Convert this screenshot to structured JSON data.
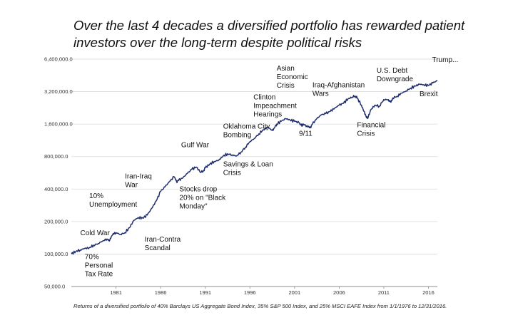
{
  "title": "Over the last 4 decades a diversified portfolio has rewarded patient investors over the long-term despite political risks",
  "footnote": "Returns of a diversified portfolio of 40% Barclays US Aggregate Bond Index, 35% S&P 500 Index, and 25% MSCI EAFE Index from 1/1/1976 to 12/31/2016.",
  "colors": {
    "line": "#1f2d6e",
    "grid": "#d9d9d9",
    "axis": "#8c8c8c"
  },
  "chart_data": {
    "type": "line",
    "title": "Over the last 4 decades a diversified portfolio has rewarded patient investors over the long-term despite political risks",
    "xlabel": "",
    "ylabel": "",
    "y_scale": "log2",
    "ylim": [
      50000,
      6400000
    ],
    "xlim": [
      1976,
      2017
    ],
    "grid": "horizontal",
    "y_ticks": [
      {
        "value": 50000,
        "label": "50,000.0"
      },
      {
        "value": 100000,
        "label": "100,000.0"
      },
      {
        "value": 200000,
        "label": "200,000.0"
      },
      {
        "value": 400000,
        "label": "400,000.0"
      },
      {
        "value": 800000,
        "label": "800,000.0"
      },
      {
        "value": 1600000,
        "label": "1,600,000.0"
      },
      {
        "value": 3200000,
        "label": "3,200,000.0"
      },
      {
        "value": 6400000,
        "label": "6,400,000.0"
      }
    ],
    "x_ticks": [
      {
        "value": 1981,
        "label": "1981"
      },
      {
        "value": 1986,
        "label": "1986"
      },
      {
        "value": 1991,
        "label": "1991"
      },
      {
        "value": 1996,
        "label": "1996"
      },
      {
        "value": 2001,
        "label": "2001"
      },
      {
        "value": 2006,
        "label": "2006"
      },
      {
        "value": 2011,
        "label": "2011"
      },
      {
        "value": 2016,
        "label": "2016"
      }
    ],
    "series": [
      {
        "x": [
          1976.0,
          1976.5,
          1977.0,
          1977.5,
          1978.0,
          1978.5,
          1979.0,
          1979.5,
          1980.0,
          1980.3,
          1980.6,
          1981.0,
          1981.5,
          1982.0,
          1982.5,
          1983.0,
          1983.5,
          1984.0,
          1984.5,
          1985.0,
          1985.5,
          1986.0,
          1986.5,
          1987.0,
          1987.5,
          1987.8,
          1988.0,
          1988.5,
          1989.0,
          1989.5,
          1990.0,
          1990.5,
          1990.8,
          1991.0,
          1991.5,
          1992.0,
          1992.5,
          1993.0,
          1993.5,
          1994.0,
          1994.5,
          1995.0,
          1995.5,
          1996.0,
          1996.5,
          1997.0,
          1997.5,
          1998.0,
          1998.5,
          1998.8,
          1999.0,
          1999.5,
          2000.0,
          2000.5,
          2001.0,
          2001.5,
          2001.8,
          2002.0,
          2002.5,
          2002.8,
          2003.0,
          2003.5,
          2004.0,
          2004.5,
          2005.0,
          2005.5,
          2006.0,
          2006.5,
          2007.0,
          2007.5,
          2007.8,
          2008.0,
          2008.5,
          2008.8,
          2009.0,
          2009.2,
          2009.5,
          2010.0,
          2010.5,
          2011.0,
          2011.5,
          2011.8,
          2012.0,
          2012.5,
          2013.0,
          2013.5,
          2014.0,
          2014.5,
          2015.0,
          2015.5,
          2016.0,
          2016.5,
          2017.0
        ],
        "y": [
          100000,
          106000,
          109000,
          113000,
          114000,
          121000,
          125000,
          132000,
          138000,
          134000,
          150000,
          158000,
          152000,
          158000,
          175000,
          205000,
          218000,
          215000,
          230000,
          265000,
          310000,
          380000,
          420000,
          470000,
          520000,
          465000,
          480000,
          510000,
          560000,
          610000,
          640000,
          570000,
          590000,
          630000,
          680000,
          720000,
          740000,
          810000,
          850000,
          830000,
          810000,
          880000,
          980000,
          1100000,
          1180000,
          1300000,
          1420000,
          1500000,
          1400000,
          1500000,
          1600000,
          1700000,
          1800000,
          1750000,
          1700000,
          1650000,
          1550000,
          1600000,
          1500000,
          1480000,
          1600000,
          1800000,
          1950000,
          2000000,
          2100000,
          2250000,
          2400000,
          2500000,
          2750000,
          2850000,
          2900000,
          2800000,
          2400000,
          2100000,
          1900000,
          1800000,
          2150000,
          2400000,
          2350000,
          2700000,
          2700000,
          2550000,
          2800000,
          2900000,
          3100000,
          3250000,
          3450000,
          3600000,
          3750000,
          3700000,
          3650000,
          3850000,
          4050000
        ]
      }
    ],
    "annotations": [
      {
        "lines": [
          "Cold War"
        ],
        "x": 1977,
        "y": 150000
      },
      {
        "lines": [
          "70%",
          "Personal",
          "Tax Rate"
        ],
        "x": 1977.5,
        "y": 90000
      },
      {
        "lines": [
          "10%",
          "Unemployment"
        ],
        "x": 1978,
        "y": 330000
      },
      {
        "lines": [
          "Iran-Iraq",
          "War"
        ],
        "x": 1982,
        "y": 500000
      },
      {
        "lines": [
          "Iran-Contra",
          "Scandal"
        ],
        "x": 1984.2,
        "y": 130000
      },
      {
        "lines": [
          "Gulf War"
        ],
        "x": 1988.3,
        "y": 980000
      },
      {
        "lines": [
          "Stocks drop",
          "20% on \"Black",
          "Monday\""
        ],
        "x": 1988.1,
        "y": 380000
      },
      {
        "lines": [
          "Savings & Loan",
          "Crisis"
        ],
        "x": 1993,
        "y": 650000
      },
      {
        "lines": [
          "Oklahoma City",
          "Bombing"
        ],
        "x": 1993,
        "y": 1450000
      },
      {
        "lines": [
          "Clinton",
          "Impeachment",
          "Hearings"
        ],
        "x": 1996.4,
        "y": 2700000
      },
      {
        "lines": [
          "Asian",
          "Economic",
          "Crisis"
        ],
        "x": 1999,
        "y": 5000000
      },
      {
        "lines": [
          "9/11"
        ],
        "x": 2001.5,
        "y": 1250000
      },
      {
        "lines": [
          "Iraq-Afghanistan",
          "Wars"
        ],
        "x": 2003,
        "y": 3500000
      },
      {
        "lines": [
          "Financial",
          "Crisis"
        ],
        "x": 2008,
        "y": 1500000
      },
      {
        "lines": [
          "U.S. Debt",
          "Downgrade"
        ],
        "x": 2010.2,
        "y": 4800000
      },
      {
        "lines": [
          "Trump..."
        ],
        "x": 2016.4,
        "y": 6000000
      },
      {
        "lines": [
          "Brexit"
        ],
        "x": 2015,
        "y": 2900000
      }
    ]
  }
}
